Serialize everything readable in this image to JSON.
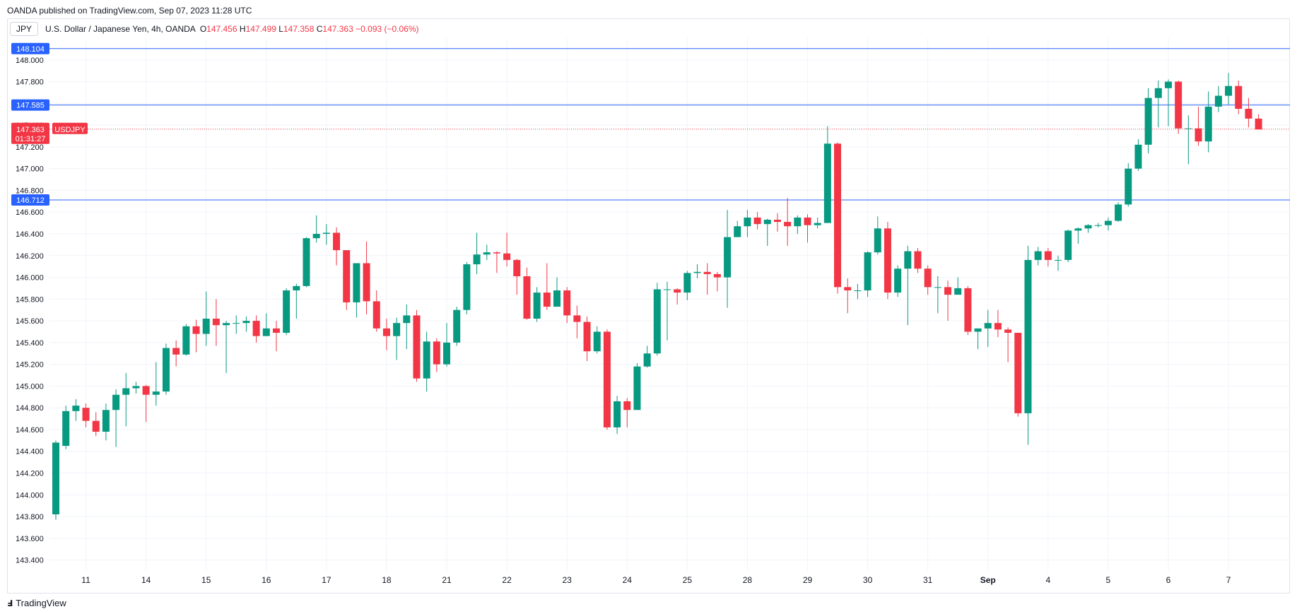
{
  "publisher_line": "OANDA published on TradingView.com, Sep 07, 2023 11:28 UTC",
  "header": {
    "symbol_box": "JPY",
    "title": "U.S. Dollar / Japanese Yen, 4h, OANDA",
    "open_label": "O",
    "open": "147.456",
    "high_label": "H",
    "high": "147.499",
    "low_label": "L",
    "low": "147.358",
    "close_label": "C",
    "close": "147.363",
    "change": "−0.093 (−0.06%)"
  },
  "footer": {
    "logo_icon": "tradingview-logo-icon",
    "brand": "TradingView"
  },
  "colors": {
    "up": "#089981",
    "down": "#f23645",
    "hline": "#2962ff",
    "grid": "#f0f3fa"
  },
  "chart_data": {
    "type": "candlestick",
    "symbol": "USDJPY",
    "interval": "4h",
    "ylim": [
      143.3,
      148.2
    ],
    "y_ticks": [
      "143.400",
      "143.600",
      "143.800",
      "144.000",
      "144.200",
      "144.400",
      "144.600",
      "144.800",
      "145.000",
      "145.200",
      "145.400",
      "145.600",
      "145.800",
      "146.000",
      "146.200",
      "146.400",
      "146.600",
      "146.800",
      "147.000",
      "147.200",
      "147.400",
      "147.600",
      "147.800",
      "148.000"
    ],
    "x_ticks": [
      {
        "label": "11",
        "bar": 3
      },
      {
        "label": "14",
        "bar": 9
      },
      {
        "label": "15",
        "bar": 15
      },
      {
        "label": "16",
        "bar": 21
      },
      {
        "label": "17",
        "bar": 27
      },
      {
        "label": "18",
        "bar": 33
      },
      {
        "label": "21",
        "bar": 39
      },
      {
        "label": "22",
        "bar": 45
      },
      {
        "label": "23",
        "bar": 51
      },
      {
        "label": "24",
        "bar": 57
      },
      {
        "label": "25",
        "bar": 63
      },
      {
        "label": "28",
        "bar": 69
      },
      {
        "label": "29",
        "bar": 75
      },
      {
        "label": "30",
        "bar": 81
      },
      {
        "label": "31",
        "bar": 87
      },
      {
        "label": "Sep",
        "bar": 93
      },
      {
        "label": "4",
        "bar": 99
      },
      {
        "label": "5",
        "bar": 105
      },
      {
        "label": "6",
        "bar": 111
      },
      {
        "label": "7",
        "bar": 117
      }
    ],
    "horizontal_lines": [
      {
        "label": "148.104",
        "value": 148.104
      },
      {
        "label": "147.585",
        "value": 147.585
      },
      {
        "label": "146.712",
        "value": 146.712
      }
    ],
    "last_price": {
      "label": "147.363",
      "value": 147.363,
      "countdown": "01:31:27",
      "tag": "USDJPY"
    },
    "candles": [
      [
        143.82,
        144.48,
        143.77,
        144.5
      ],
      [
        144.45,
        144.77,
        144.42,
        144.82
      ],
      [
        144.77,
        144.82,
        144.68,
        144.88
      ],
      [
        144.8,
        144.68,
        144.62,
        144.84
      ],
      [
        144.68,
        144.58,
        144.54,
        144.76
      ],
      [
        144.58,
        144.78,
        144.5,
        144.84
      ],
      [
        144.78,
        144.92,
        144.44,
        144.97
      ],
      [
        144.92,
        144.98,
        144.63,
        145.12
      ],
      [
        144.98,
        145.0,
        144.93,
        145.04
      ],
      [
        145.0,
        144.92,
        144.67,
        145.01
      ],
      [
        144.92,
        144.95,
        144.82,
        145.22
      ],
      [
        144.95,
        145.35,
        144.92,
        145.39
      ],
      [
        145.35,
        145.29,
        145.18,
        145.42
      ],
      [
        145.29,
        145.55,
        145.28,
        145.57
      ],
      [
        145.55,
        145.48,
        145.31,
        145.61
      ],
      [
        145.48,
        145.62,
        145.37,
        145.87
      ],
      [
        145.62,
        145.56,
        145.37,
        145.8
      ],
      [
        145.56,
        145.58,
        145.12,
        145.6
      ],
      [
        145.58,
        145.58,
        145.48,
        145.65
      ],
      [
        145.58,
        145.6,
        145.5,
        145.64
      ],
      [
        145.6,
        145.46,
        145.4,
        145.65
      ],
      [
        145.46,
        145.53,
        145.46,
        145.67
      ],
      [
        145.53,
        145.49,
        145.32,
        145.6
      ],
      [
        145.49,
        145.88,
        145.47,
        145.9
      ],
      [
        145.88,
        145.92,
        145.62,
        145.94
      ],
      [
        145.92,
        146.36,
        145.91,
        146.37
      ],
      [
        146.36,
        146.4,
        146.32,
        146.57
      ],
      [
        146.4,
        146.41,
        146.3,
        146.49
      ],
      [
        146.41,
        146.25,
        146.11,
        146.46
      ],
      [
        146.25,
        145.77,
        145.7,
        146.25
      ],
      [
        145.77,
        146.13,
        145.63,
        146.13
      ],
      [
        146.13,
        145.78,
        145.66,
        146.33
      ],
      [
        145.78,
        145.53,
        145.5,
        145.88
      ],
      [
        145.53,
        145.46,
        145.33,
        145.62
      ],
      [
        145.46,
        145.58,
        145.24,
        145.63
      ],
      [
        145.58,
        145.65,
        145.34,
        145.75
      ],
      [
        145.65,
        145.07,
        145.04,
        145.7
      ],
      [
        145.07,
        145.41,
        144.95,
        145.5
      ],
      [
        145.41,
        145.2,
        145.13,
        145.44
      ],
      [
        145.2,
        145.4,
        145.18,
        145.58
      ],
      [
        145.4,
        145.7,
        145.37,
        145.73
      ],
      [
        145.7,
        146.12,
        145.66,
        146.14
      ],
      [
        146.12,
        146.21,
        146.03,
        146.41
      ],
      [
        146.21,
        146.23,
        146.16,
        146.3
      ],
      [
        146.23,
        146.22,
        146.04,
        146.24
      ],
      [
        146.22,
        146.16,
        146.1,
        146.41
      ],
      [
        146.16,
        146.01,
        145.84,
        146.17
      ],
      [
        146.01,
        145.62,
        145.61,
        146.09
      ],
      [
        145.62,
        145.86,
        145.59,
        145.91
      ],
      [
        145.86,
        145.73,
        145.7,
        146.13
      ],
      [
        145.73,
        145.88,
        145.73,
        146.0
      ],
      [
        145.88,
        145.65,
        145.58,
        145.91
      ],
      [
        145.65,
        145.59,
        145.44,
        145.74
      ],
      [
        145.59,
        145.32,
        145.23,
        145.64
      ],
      [
        145.32,
        145.5,
        145.3,
        145.55
      ],
      [
        145.5,
        144.62,
        144.6,
        145.52
      ],
      [
        144.62,
        144.86,
        144.56,
        144.91
      ],
      [
        144.86,
        144.78,
        144.62,
        144.89
      ],
      [
        144.78,
        145.18,
        144.8,
        145.21
      ],
      [
        145.18,
        145.3,
        145.17,
        145.37
      ],
      [
        145.3,
        145.89,
        145.28,
        145.95
      ],
      [
        145.89,
        145.89,
        145.42,
        145.96
      ],
      [
        145.89,
        145.86,
        145.75,
        145.9
      ],
      [
        145.86,
        146.04,
        145.79,
        146.06
      ],
      [
        146.04,
        146.05,
        145.99,
        146.12
      ],
      [
        146.05,
        146.03,
        145.84,
        146.13
      ],
      [
        146.03,
        146.0,
        145.87,
        146.05
      ],
      [
        146.0,
        146.37,
        145.72,
        146.62
      ],
      [
        146.37,
        146.47,
        146.38,
        146.52
      ],
      [
        146.47,
        146.55,
        146.37,
        146.62
      ],
      [
        146.55,
        146.49,
        146.44,
        146.6
      ],
      [
        146.49,
        146.53,
        146.29,
        146.54
      ],
      [
        146.53,
        146.51,
        146.42,
        146.59
      ],
      [
        146.51,
        146.47,
        146.29,
        146.73
      ],
      [
        146.47,
        146.55,
        146.4,
        146.57
      ],
      [
        146.55,
        146.48,
        146.32,
        146.58
      ],
      [
        146.48,
        146.5,
        146.45,
        146.55
      ],
      [
        146.5,
        147.23,
        146.52,
        147.39
      ],
      [
        147.23,
        145.91,
        145.85,
        147.24
      ],
      [
        145.91,
        145.88,
        145.67,
        145.99
      ],
      [
        145.88,
        145.88,
        145.8,
        145.94
      ],
      [
        145.88,
        146.23,
        145.82,
        146.24
      ],
      [
        146.23,
        146.45,
        146.21,
        146.56
      ],
      [
        146.45,
        145.86,
        145.8,
        146.51
      ],
      [
        145.86,
        146.08,
        145.82,
        146.11
      ],
      [
        146.08,
        146.24,
        145.56,
        146.29
      ],
      [
        146.24,
        146.08,
        146.04,
        146.27
      ],
      [
        146.08,
        145.91,
        145.84,
        146.11
      ],
      [
        145.91,
        145.91,
        145.67,
        146.01
      ],
      [
        145.91,
        145.84,
        145.6,
        145.97
      ],
      [
        145.84,
        145.9,
        145.85,
        146.0
      ],
      [
        145.9,
        145.5,
        145.47,
        145.92
      ],
      [
        145.5,
        145.53,
        145.34,
        145.53
      ],
      [
        145.53,
        145.58,
        145.36,
        145.7
      ],
      [
        145.58,
        145.52,
        145.45,
        145.7
      ],
      [
        145.52,
        145.49,
        145.22,
        145.54
      ],
      [
        145.49,
        144.75,
        144.72,
        145.47
      ],
      [
        144.75,
        146.16,
        144.46,
        146.29
      ],
      [
        146.16,
        146.24,
        146.11,
        146.28
      ],
      [
        146.24,
        146.16,
        146.1,
        146.27
      ],
      [
        146.16,
        146.16,
        146.06,
        146.2
      ],
      [
        146.16,
        146.43,
        146.14,
        146.44
      ],
      [
        146.43,
        146.45,
        146.31,
        146.46
      ],
      [
        146.45,
        146.48,
        146.41,
        146.49
      ],
      [
        146.48,
        146.48,
        146.46,
        146.5
      ],
      [
        146.48,
        146.52,
        146.43,
        146.55
      ],
      [
        146.52,
        146.67,
        146.51,
        146.69
      ],
      [
        146.67,
        147.0,
        146.65,
        147.05
      ],
      [
        147.0,
        147.22,
        146.98,
        147.27
      ],
      [
        147.22,
        147.65,
        147.14,
        147.74
      ],
      [
        147.65,
        147.74,
        147.38,
        147.81
      ],
      [
        147.74,
        147.8,
        147.39,
        147.82
      ],
      [
        147.8,
        147.37,
        147.32,
        147.81
      ],
      [
        147.37,
        147.37,
        147.04,
        147.49
      ],
      [
        147.37,
        147.25,
        147.21,
        147.57
      ],
      [
        147.25,
        147.57,
        147.15,
        147.71
      ],
      [
        147.57,
        147.67,
        147.52,
        147.76
      ],
      [
        147.67,
        147.76,
        147.59,
        147.88
      ],
      [
        147.76,
        147.55,
        147.5,
        147.81
      ],
      [
        147.55,
        147.46,
        147.38,
        147.65
      ],
      [
        147.46,
        147.36,
        147.36,
        147.5
      ]
    ]
  }
}
